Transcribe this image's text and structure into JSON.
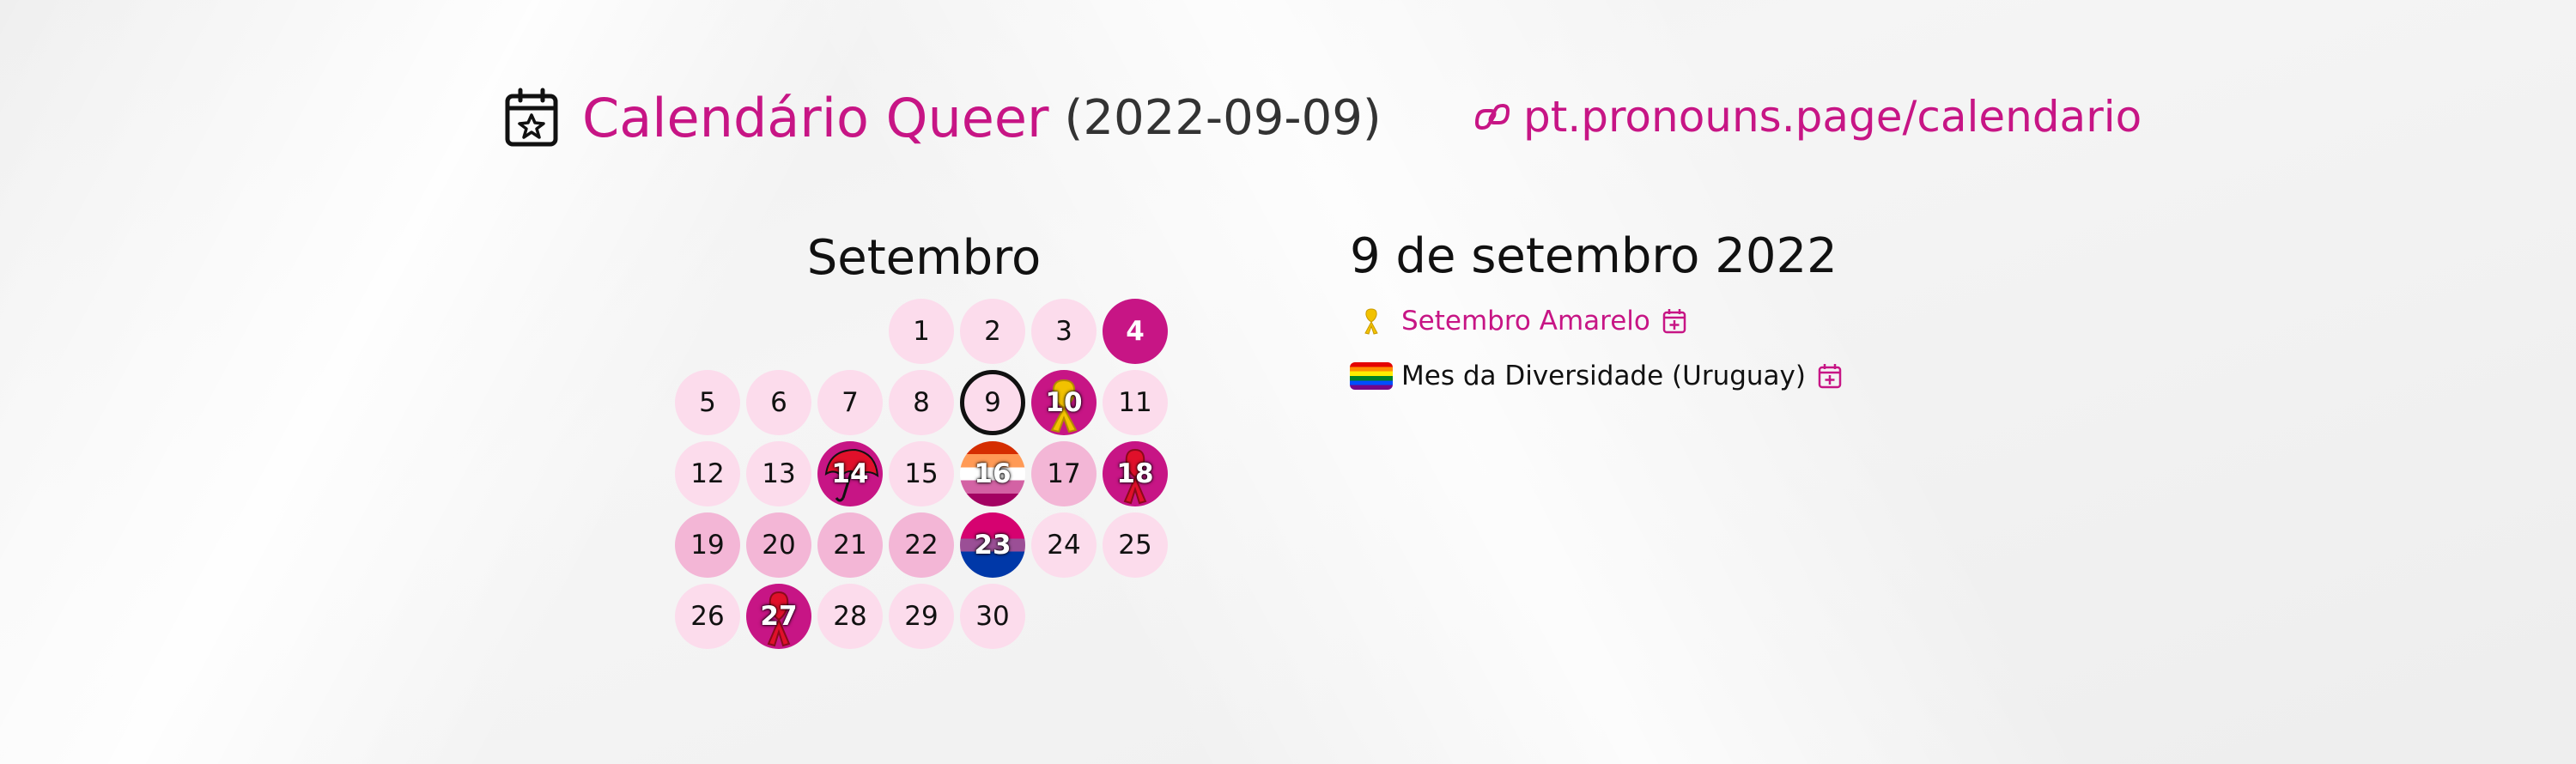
{
  "header": {
    "title": "Calendário Queer",
    "date": "(2022-09-09)",
    "site_url": "pt.pronouns.page/calendario",
    "accent_color": "#c71585",
    "icon": "calendar-star-icon",
    "site_icon": "pronouns-page-logo"
  },
  "calendar": {
    "month": "Setembro",
    "leading_blanks": 3,
    "days": [
      {
        "label": "1",
        "level": "lv1"
      },
      {
        "label": "2",
        "level": "lv1"
      },
      {
        "label": "3",
        "level": "lv1"
      },
      {
        "label": "4",
        "level": "lv3"
      },
      {
        "label": "5",
        "level": "lv1"
      },
      {
        "label": "6",
        "level": "lv1"
      },
      {
        "label": "7",
        "level": "lv1"
      },
      {
        "label": "8",
        "level": "lv1"
      },
      {
        "label": "9",
        "level": "today"
      },
      {
        "label": "10",
        "level": "lv3",
        "icon": "yellow-ribbon-icon"
      },
      {
        "label": "11",
        "level": "lv1"
      },
      {
        "label": "12",
        "level": "lv1"
      },
      {
        "label": "13",
        "level": "lv1"
      },
      {
        "label": "14",
        "level": "lv3",
        "icon": "red-umbrella-icon"
      },
      {
        "label": "15",
        "level": "lv1"
      },
      {
        "label": "16",
        "level": "flag-lesbian"
      },
      {
        "label": "17",
        "level": "lv2"
      },
      {
        "label": "18",
        "level": "lv3",
        "icon": "red-ribbon-icon"
      },
      {
        "label": "19",
        "level": "lv2"
      },
      {
        "label": "20",
        "level": "lv2"
      },
      {
        "label": "21",
        "level": "lv2"
      },
      {
        "label": "22",
        "level": "lv2"
      },
      {
        "label": "23",
        "level": "flag-bi"
      },
      {
        "label": "24",
        "level": "lv1"
      },
      {
        "label": "25",
        "level": "lv1"
      },
      {
        "label": "26",
        "level": "lv1"
      },
      {
        "label": "27",
        "level": "lv3",
        "icon": "red-ribbon-icon"
      },
      {
        "label": "28",
        "level": "lv1"
      },
      {
        "label": "29",
        "level": "lv1"
      },
      {
        "label": "30",
        "level": "lv1"
      }
    ]
  },
  "selected_day": {
    "title": "9 de setembro 2022",
    "events": [
      {
        "label": "Setembro Amarelo",
        "icon": "yellow-ribbon-icon",
        "style": "pink"
      },
      {
        "label": "Mes da Diversidade (Uruguay)",
        "icon": "rainbow-flag-icon",
        "style": "dark"
      }
    ]
  }
}
